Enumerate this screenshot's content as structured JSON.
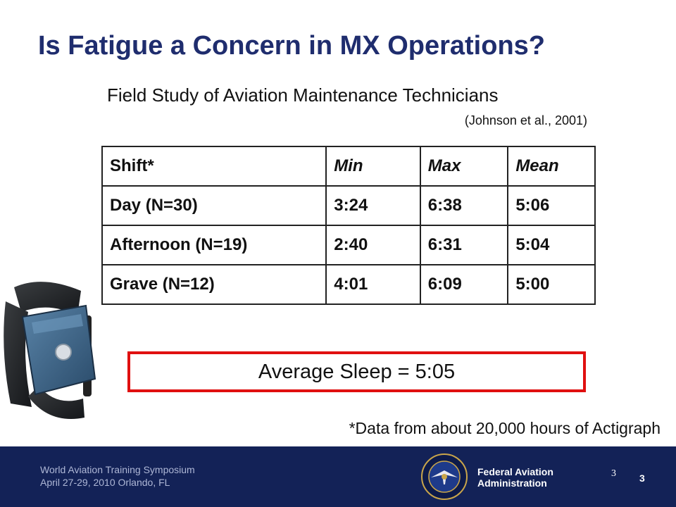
{
  "slide": {
    "title": "Is Fatigue a Concern in MX Operations?",
    "subtitle": "Field Study of Aviation Maintenance Technicians",
    "citation": "(Johnson et al., 2001)"
  },
  "table": {
    "headers": [
      "Shift*",
      "Min",
      "Max",
      "Mean"
    ],
    "rows": [
      [
        "Day (N=30)",
        "3:24",
        "6:38",
        "5:06"
      ],
      [
        "Afternoon (N=19)",
        "2:40",
        "6:31",
        "5:04"
      ],
      [
        "Grave (N=12)",
        "4:01",
        "6:09",
        "5:00"
      ]
    ]
  },
  "summary": {
    "average_sleep": "Average Sleep = 5:05"
  },
  "footnote": "*Data from about 20,000 hours of Actigraph",
  "footer": {
    "event_line1": "World Aviation Training Symposium",
    "event_line2": "April 27-29, 2010 Orlando, FL",
    "org_line1": "Federal Aviation",
    "org_line2": "Administration",
    "seal_text_top": "FEDERAL AVIATION",
    "seal_text_bottom": "ADMINISTRATION",
    "page_number": "3",
    "page_number_bold": "3"
  },
  "colors": {
    "title": "#1f2d6e",
    "footer_bg": "#132257",
    "highlight_border": "#e01010"
  },
  "icons": [
    "actigraph-wristband-image",
    "faa-seal-logo"
  ]
}
